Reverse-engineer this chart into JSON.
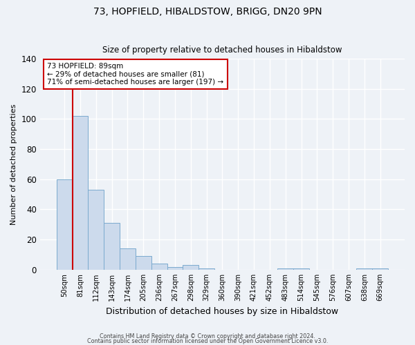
{
  "title": "73, HOPFIELD, HIBALDSTOW, BRIGG, DN20 9PN",
  "subtitle": "Size of property relative to detached houses in Hibaldstow",
  "xlabel": "Distribution of detached houses by size in Hibaldstow",
  "ylabel": "Number of detached properties",
  "bar_labels": [
    "50sqm",
    "81sqm",
    "112sqm",
    "143sqm",
    "174sqm",
    "205sqm",
    "236sqm",
    "267sqm",
    "298sqm",
    "329sqm",
    "360sqm",
    "390sqm",
    "421sqm",
    "452sqm",
    "483sqm",
    "514sqm",
    "545sqm",
    "576sqm",
    "607sqm",
    "638sqm",
    "669sqm"
  ],
  "bar_values": [
    60,
    102,
    53,
    31,
    14,
    9,
    4,
    2,
    3,
    1,
    0,
    0,
    0,
    0,
    1,
    1,
    0,
    0,
    0,
    1,
    1
  ],
  "bar_color": "#ccdaec",
  "bar_edge_color": "#7aaace",
  "vline_x_index": 1,
  "vline_color": "#cc0000",
  "annotation_lines": [
    "73 HOPFIELD: 89sqm",
    "← 29% of detached houses are smaller (81)",
    "71% of semi-detached houses are larger (197) →"
  ],
  "annotation_box_color": "#ffffff",
  "annotation_box_edge_color": "#cc0000",
  "ylim": [
    0,
    140
  ],
  "yticks": [
    0,
    20,
    40,
    60,
    80,
    100,
    120,
    140
  ],
  "background_color": "#eef2f7",
  "grid_color": "#ffffff",
  "footer_line1": "Contains HM Land Registry data © Crown copyright and database right 2024.",
  "footer_line2": "Contains public sector information licensed under the Open Government Licence v3.0."
}
